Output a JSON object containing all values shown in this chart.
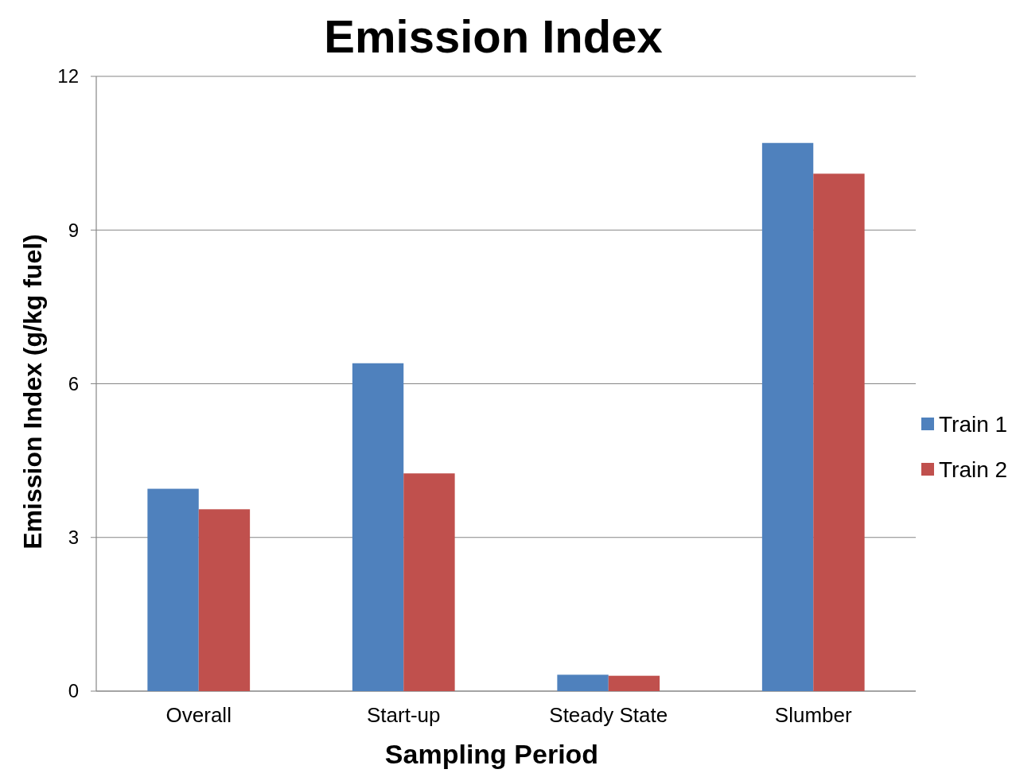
{
  "chart_data": {
    "type": "bar",
    "title": "Emission Index",
    "xlabel": "Sampling Period",
    "ylabel": "Emission Index (g/kg fuel)",
    "categories": [
      "Overall",
      "Start-up",
      "Steady State",
      "Slumber"
    ],
    "series": [
      {
        "name": "Train 1",
        "color": "#4f81bd",
        "values": [
          3.95,
          6.4,
          0.32,
          10.7
        ]
      },
      {
        "name": "Train 2",
        "color": "#c0504d",
        "values": [
          3.55,
          4.25,
          0.3,
          10.1
        ]
      }
    ],
    "ylim": [
      0,
      12
    ],
    "yticks": [
      0,
      3,
      6,
      9,
      12
    ],
    "grid": "y",
    "legend": "right"
  }
}
